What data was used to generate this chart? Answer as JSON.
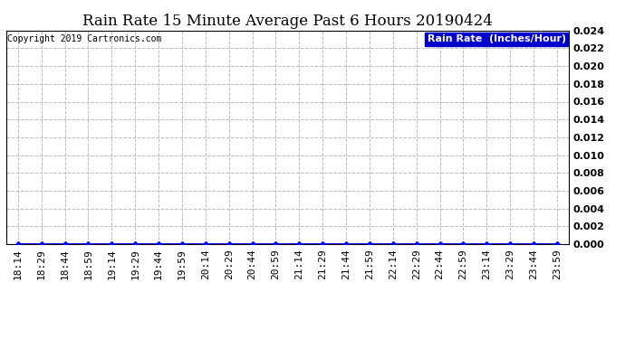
{
  "title": "Rain Rate 15 Minute Average Past 6 Hours 20190424",
  "copyright": "Copyright 2019 Cartronics.com",
  "legend_label": "Rain Rate  (Inches/Hour)",
  "legend_bg": "#0000cc",
  "legend_fg": "#ffffff",
  "x_labels": [
    "18:14",
    "18:29",
    "18:44",
    "18:59",
    "19:14",
    "19:29",
    "19:44",
    "19:59",
    "20:14",
    "20:29",
    "20:44",
    "20:59",
    "21:14",
    "21:29",
    "21:44",
    "21:59",
    "22:14",
    "22:29",
    "22:44",
    "22:59",
    "23:14",
    "23:29",
    "23:44",
    "23:59"
  ],
  "y_values": [
    0,
    0,
    0,
    0,
    0,
    0,
    0,
    0,
    0,
    0,
    0,
    0,
    0,
    0,
    0,
    0,
    0,
    0,
    0,
    0,
    0,
    0,
    0,
    0
  ],
  "ylim": [
    0.0,
    0.024
  ],
  "yticks": [
    0.0,
    0.002,
    0.004,
    0.006,
    0.008,
    0.01,
    0.012,
    0.014,
    0.016,
    0.018,
    0.02,
    0.022,
    0.024
  ],
  "line_color": "#0000ff",
  "marker": "D",
  "marker_size": 3,
  "grid_color": "#bbbbbb",
  "grid_style": "--",
  "bg_color": "#ffffff",
  "title_fontsize": 12,
  "copyright_fontsize": 7,
  "tick_fontsize": 8,
  "legend_fontsize": 8
}
